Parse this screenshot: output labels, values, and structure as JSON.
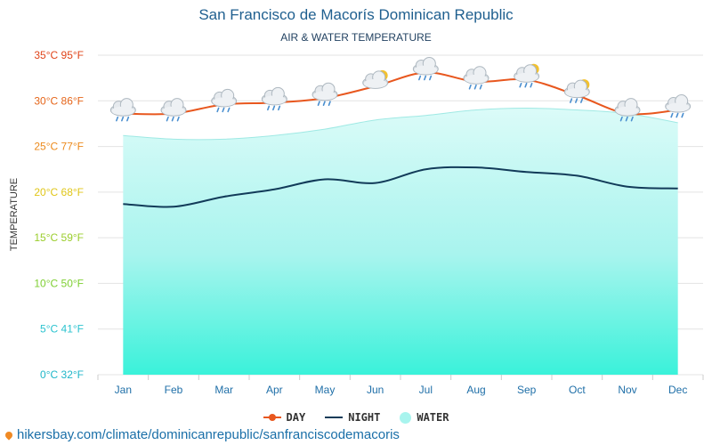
{
  "title": "San Francisco de Macorís Dominican Republic",
  "subtitle": "AIR & WATER TEMPERATURE",
  "source_url": "hikersbay.com/climate/dominicanrepublic/sanfranciscodemacoris",
  "legend": {
    "day": "DAY",
    "night": "NIGHT",
    "water": "WATER"
  },
  "colors": {
    "day": "#e8571e",
    "night": "#123b59",
    "water": "#33f0d8",
    "grid": "#e3e3e3"
  },
  "chart_data": {
    "type": "line",
    "title": "San Francisco de Macorís Dominican Republic",
    "subtitle": "AIR & WATER TEMPERATURE",
    "xlabel": "",
    "ylabel": "TEMPERATURE",
    "ylim": [
      0,
      35
    ],
    "grid": true,
    "legend_position": "bottom",
    "categories": [
      "Jan",
      "Feb",
      "Mar",
      "Apr",
      "May",
      "Jun",
      "Jul",
      "Aug",
      "Sep",
      "Oct",
      "Nov",
      "Dec"
    ],
    "y_ticks": [
      {
        "value": 0,
        "label": "0°C 32°F",
        "color": "#1fb6c8"
      },
      {
        "value": 5,
        "label": "5°C 41°F",
        "color": "#2cc3cf"
      },
      {
        "value": 10,
        "label": "10°C 50°F",
        "color": "#7ecf32"
      },
      {
        "value": 15,
        "label": "15°C 59°F",
        "color": "#9acd2b"
      },
      {
        "value": 20,
        "label": "20°C 68°F",
        "color": "#e0c619"
      },
      {
        "value": 25,
        "label": "25°C 77°F",
        "color": "#ec8a1c"
      },
      {
        "value": 30,
        "label": "30°C 86°F",
        "color": "#e5661b"
      },
      {
        "value": 35,
        "label": "35°C 95°F",
        "color": "#e0441a"
      }
    ],
    "series": [
      {
        "name": "DAY",
        "type": "line",
        "values": [
          28.6,
          28.6,
          29.6,
          29.8,
          30.3,
          31.6,
          33.1,
          32.1,
          32.3,
          30.6,
          28.6,
          29.0
        ]
      },
      {
        "name": "NIGHT",
        "type": "line",
        "values": [
          18.7,
          18.4,
          19.5,
          20.3,
          21.4,
          21.0,
          22.5,
          22.7,
          22.2,
          21.8,
          20.6,
          20.4
        ]
      },
      {
        "name": "WATER",
        "type": "area",
        "values": [
          26.2,
          25.8,
          25.8,
          26.2,
          26.9,
          27.9,
          28.4,
          29.0,
          29.2,
          29.0,
          28.6,
          27.6
        ]
      }
    ],
    "weather_icons": [
      "rain",
      "rain",
      "rain",
      "rain",
      "rain",
      "sun-cloud",
      "rain",
      "rain",
      "sun-rain",
      "sun-rain",
      "rain",
      "rain"
    ]
  }
}
